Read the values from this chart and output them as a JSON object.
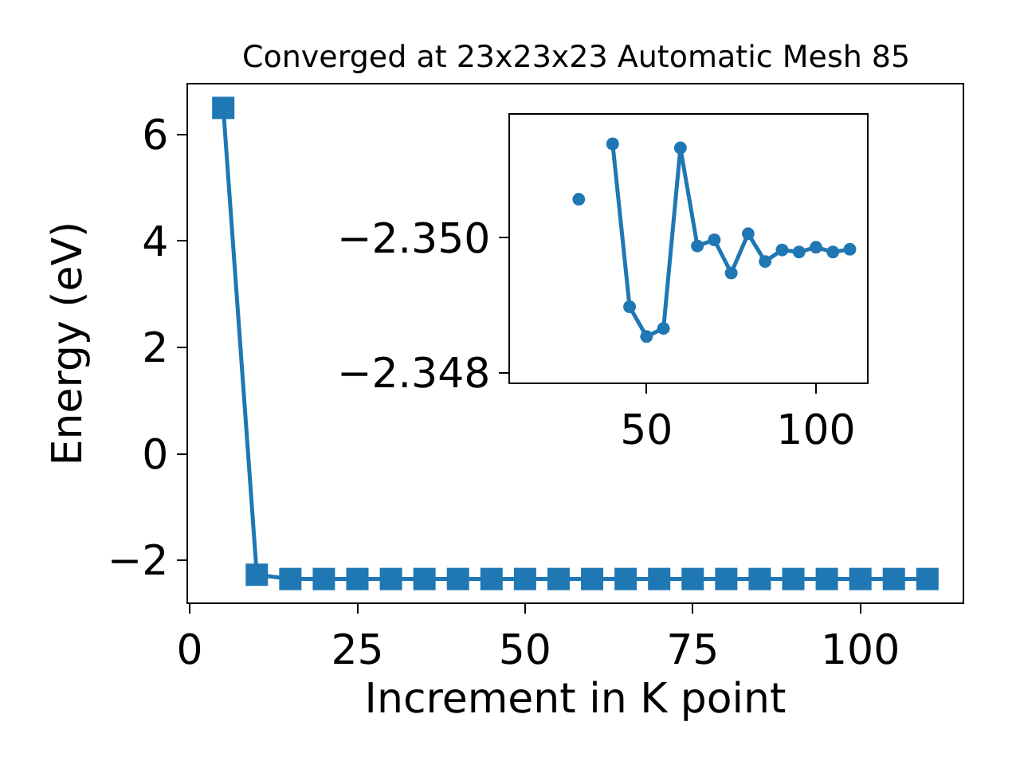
{
  "chart_data": [
    {
      "type": "line",
      "title": "Converged at 23x23x23 Automatic Mesh 85",
      "xlabel": "Increment in K point",
      "ylabel": "Energy (eV)",
      "x": [
        5,
        10,
        15,
        20,
        25,
        30,
        35,
        40,
        45,
        50,
        55,
        60,
        65,
        70,
        75,
        80,
        85,
        90,
        95,
        100,
        105,
        110
      ],
      "series": [
        {
          "color": "#1f77b4",
          "values": [
            6.5,
            -2.27,
            -2.35,
            -2.35,
            -2.35,
            -2.35,
            -2.35,
            -2.35,
            -2.35,
            -2.35,
            -2.35,
            -2.35,
            -2.35,
            -2.35,
            -2.35,
            -2.35,
            -2.35,
            -2.35,
            -2.35,
            -2.35,
            -2.35,
            -2.35
          ]
        }
      ],
      "xlim": [
        -0.25,
        115.25
      ],
      "xticks": [
        0,
        25,
        50,
        75,
        100
      ],
      "ylim": [
        -2.79,
        6.94
      ],
      "yticks": [
        {
          "value": -2,
          "label": "−2"
        },
        0,
        2,
        4,
        6
      ],
      "marker": "square",
      "line_style": "solid"
    },
    {
      "type": "line",
      "x": [
        30,
        35,
        40,
        45,
        50,
        55,
        60,
        65,
        70,
        75,
        80,
        85,
        90,
        95,
        100,
        105,
        110
      ],
      "series": [
        {
          "color": "#1f77b4",
          "values": [
            -2.35057,
            null,
            -2.35139,
            -2.34898,
            -2.34854,
            -2.34866,
            -2.35133,
            -2.34988,
            -2.34997,
            -2.34948,
            -2.35006,
            -2.34965,
            -2.34982,
            -2.34979,
            -2.34986,
            -2.34979,
            -2.34983
          ]
        }
      ],
      "xlim": [
        9.7,
        115.05
      ],
      "xticks": [
        50,
        100
      ],
      "ylim": [
        -2.34786,
        -2.35182
      ],
      "yticks": [
        {
          "value": -2.35,
          "label": "−2.350"
        },
        {
          "value": -2.348,
          "label": "−2.348"
        }
      ],
      "marker": "circle",
      "line_style": "solid"
    }
  ]
}
